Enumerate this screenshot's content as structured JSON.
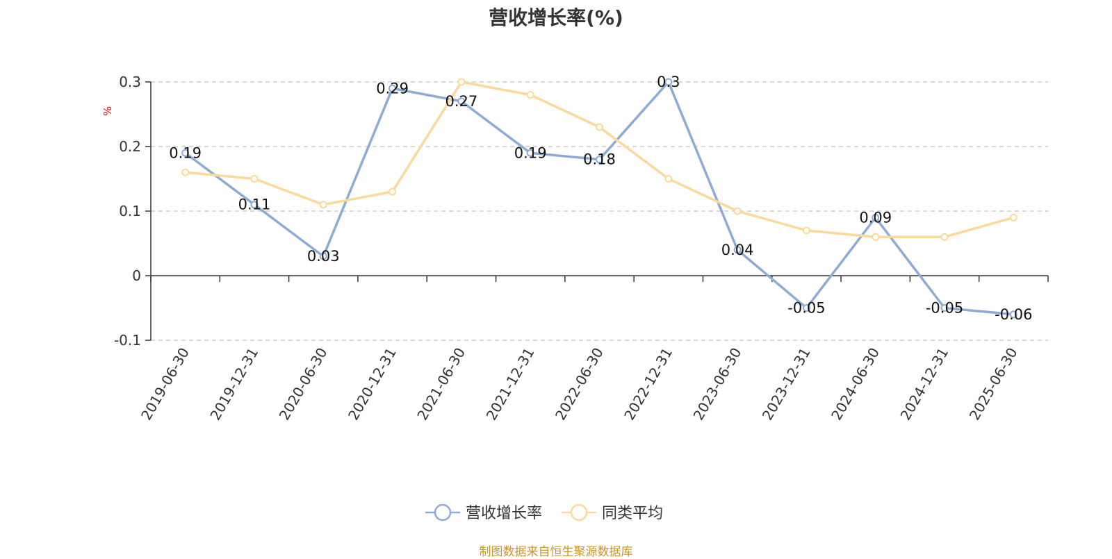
{
  "chart_data": {
    "type": "line",
    "title": "营收增长率(%)",
    "ylabel": "%",
    "categories": [
      "2019-06-30",
      "2019-12-31",
      "2020-06-30",
      "2020-12-31",
      "2021-06-30",
      "2021-12-31",
      "2022-06-30",
      "2022-12-31",
      "2023-06-30",
      "2023-12-31",
      "2024-06-30",
      "2024-12-31",
      "2025-06-30"
    ],
    "series": [
      {
        "name": "营收增长率",
        "color": "#8eabd6",
        "values": [
          0.19,
          0.11,
          0.03,
          0.29,
          0.27,
          0.19,
          0.18,
          0.3,
          0.04,
          -0.05,
          0.09,
          -0.05,
          -0.06
        ],
        "show_labels": true
      },
      {
        "name": "同类平均",
        "color": "#fcd99a",
        "values": [
          0.16,
          0.15,
          0.11,
          0.13,
          0.3,
          0.28,
          0.23,
          0.15,
          0.1,
          0.07,
          0.06,
          0.06,
          0.09
        ],
        "show_labels": false
      }
    ],
    "ylim": [
      -0.1,
      0.3
    ],
    "yticks": [
      -0.1,
      0,
      0.1,
      0.2,
      0.3
    ],
    "ytick_labels": [
      "-0.1",
      "0",
      "0.1",
      "0.2",
      "0.3"
    ],
    "grid": true,
    "legend": "bottom-center"
  },
  "source_note": "制图数据来自恒生聚源数据库"
}
